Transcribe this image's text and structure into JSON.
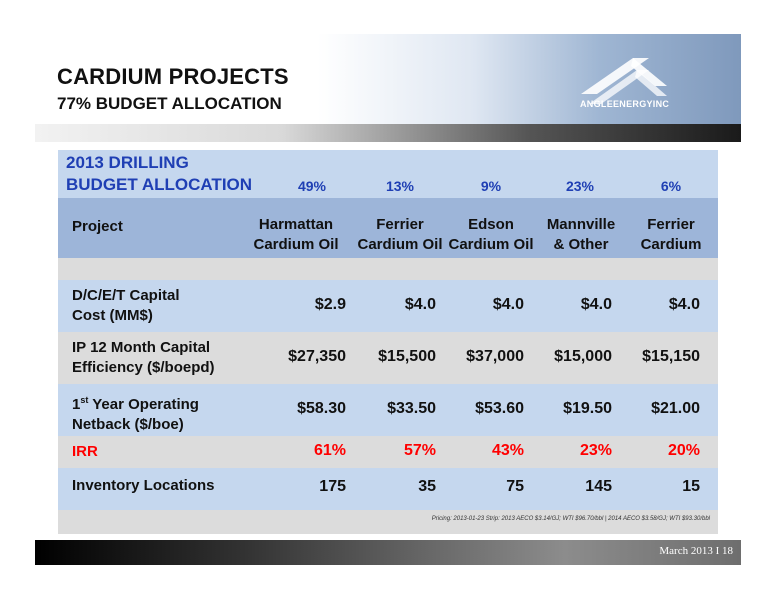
{
  "slide": {
    "title": "CARDIUM PROJECTS",
    "subtitle": "77% BUDGET ALLOCATION",
    "logo_text": "ANGLEENERGYINC"
  },
  "table": {
    "alloc_label_line1": "2013 DRILLING",
    "alloc_label_line2": "BUDGET ALLOCATION",
    "allocations": [
      "49%",
      "13%",
      "9%",
      "23%",
      "6%"
    ],
    "project_header": "Project",
    "columns": [
      {
        "line1": "Harmattan",
        "line2": "Cardium Oil"
      },
      {
        "line1": "Ferrier",
        "line2": "Cardium Oil"
      },
      {
        "line1": "Edson",
        "line2": "Cardium Oil"
      },
      {
        "line1": "Mannville",
        "line2": "& Other"
      },
      {
        "line1": "Ferrier",
        "line2": "Cardium Gas"
      }
    ],
    "rows": [
      {
        "label_line1": "D/C/E/T Capital",
        "label_line2": "Cost (MM$)",
        "values": [
          "$2.9",
          "$4.0",
          "$4.0",
          "$4.0",
          "$4.0"
        ]
      },
      {
        "label_line1": "IP 12 Month Capital",
        "label_line2": "Efficiency ($/boepd)",
        "values": [
          "$27,350",
          "$15,500",
          "$37,000",
          "$15,000",
          "$15,150"
        ]
      },
      {
        "label_line1_a": "1",
        "label_line1_sup": "st",
        "label_line1_b": " Year Operating",
        "label_line2": "Netback ($/boe)",
        "values": [
          "$58.30",
          "$33.50",
          "$53.60",
          "$19.50",
          "$21.00"
        ]
      },
      {
        "label": "IRR",
        "values": [
          "61%",
          "57%",
          "43%",
          "23%",
          "20%"
        ]
      },
      {
        "label": "Inventory Locations",
        "values": [
          "175",
          "35",
          "75",
          "145",
          "15"
        ]
      }
    ],
    "pricing_note": "Pricing: 2013-01-23 Strip: 2013 AECO $3.14/GJ; WTI $96.70/bbl | 2014 AECO $3.58/GJ; WTI $93.30/bbl"
  },
  "footer": {
    "text": "March 2013 I 18"
  },
  "colors": {
    "row_blue": "#c5d7ee",
    "row_header": "#9db5d9",
    "row_grey": "#dcdcdc",
    "irr_red": "#ff0000",
    "alloc_title_blue": "#1f3fb4"
  }
}
